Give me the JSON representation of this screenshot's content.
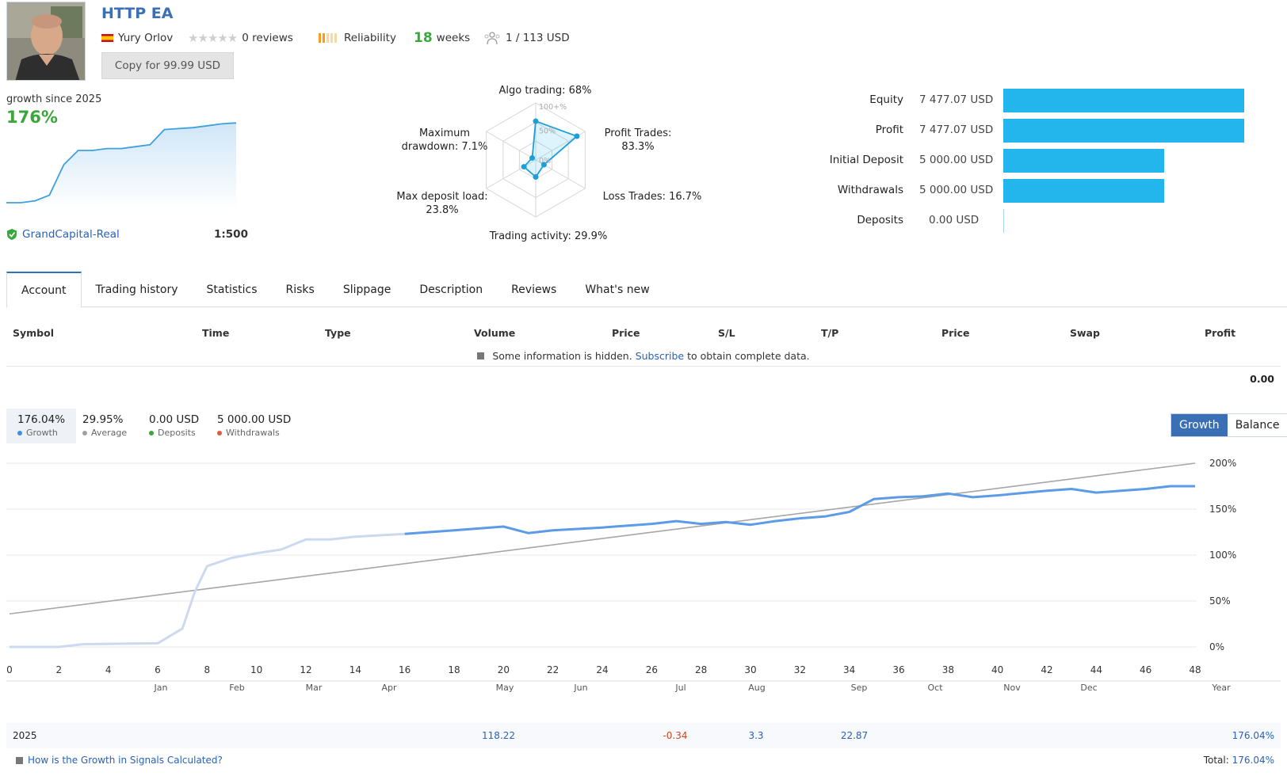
{
  "header": {
    "title": "HTTP EA",
    "author": "Yury Orlov",
    "reviews": "0 reviews",
    "reliability": "Reliability",
    "weeks_num": "18",
    "weeks_label": "weeks",
    "subscribers": "1 / 113 USD",
    "copy_button": "Copy for 99.99 USD"
  },
  "summary": {
    "growth_since": "growth since 2025",
    "growth_pct": "176%",
    "broker": "GrandCapital-Real",
    "leverage": "1:500"
  },
  "radar": {
    "algo": "Algo trading: 68%",
    "profit_l1": "Profit Trades:",
    "profit_l2": "83.3%",
    "loss": "Loss Trades: 16.7%",
    "activity": "Trading activity: 29.9%",
    "load_l1": "Max deposit load:",
    "load_l2": "23.8%",
    "dd_l1": "Maximum",
    "dd_l2": "drawdown: 7.1%",
    "scale_100": "100+%",
    "scale_50": "50%",
    "scale_0": "0%",
    "values": {
      "algo": 68,
      "profit": 83.3,
      "loss": 16.7,
      "activity": 29.9,
      "load": 23.8,
      "drawdown": 7.1
    }
  },
  "equity": [
    {
      "label": "Equity",
      "value": "7 477.07 USD",
      "amount": 7477.07
    },
    {
      "label": "Profit",
      "value": "7 477.07 USD",
      "amount": 7477.07
    },
    {
      "label": "Initial Deposit",
      "value": "5 000.00 USD",
      "amount": 5000
    },
    {
      "label": "Withdrawals",
      "value": "5 000.00 USD",
      "amount": 5000
    },
    {
      "label": "Deposits",
      "value": "0.00 USD",
      "amount": 0
    }
  ],
  "tabs": [
    "Account",
    "Trading history",
    "Statistics",
    "Risks",
    "Slippage",
    "Description",
    "Reviews",
    "What's new"
  ],
  "table": {
    "headers": [
      "Symbol",
      "Time",
      "Type",
      "Volume",
      "Price",
      "S/L",
      "T/P",
      "Price",
      "Swap",
      "Profit"
    ],
    "note_before": "Some information is hidden.",
    "note_link": "Subscribe",
    "note_after": "to obtain complete data.",
    "total": "0.00"
  },
  "stats": [
    {
      "value": "176.04%",
      "label": "Growth",
      "color": "#3e8fe0"
    },
    {
      "value": "29.95%",
      "label": "Average",
      "color": "#a0a0a0"
    },
    {
      "value": "0.00 USD",
      "label": "Deposits",
      "color": "#3aa73a"
    },
    {
      "value": "5 000.00 USD",
      "label": "Withdrawals",
      "color": "#e05b3e"
    }
  ],
  "toggle": {
    "growth": "Growth",
    "balance": "Balance"
  },
  "chart_data": {
    "type": "line",
    "x_ticks": [
      "0",
      "2",
      "4",
      "6",
      "8",
      "10",
      "12",
      "14",
      "16",
      "18",
      "20",
      "22",
      "24",
      "26",
      "28",
      "30",
      "32",
      "34",
      "36",
      "38",
      "40",
      "42",
      "44",
      "46",
      "48"
    ],
    "y_ticks": [
      "0%",
      "50%",
      "100%",
      "150%",
      "200%"
    ],
    "ylim": [
      0,
      200
    ],
    "xlim": [
      0,
      48
    ],
    "months": [
      "Jan",
      "Feb",
      "Mar",
      "Apr",
      "May",
      "Jun",
      "Jul",
      "Aug",
      "Sep",
      "Oct",
      "Nov",
      "Dec"
    ],
    "year_label": "Year",
    "series": [
      {
        "values": [
          [
            0,
            0
          ],
          [
            2,
            0
          ],
          [
            3,
            3
          ],
          [
            6,
            4
          ],
          [
            7,
            20
          ],
          [
            7.5,
            60
          ],
          [
            8,
            88
          ],
          [
            9,
            97
          ],
          [
            10,
            102
          ],
          [
            11,
            106
          ],
          [
            12,
            117
          ],
          [
            13,
            117
          ],
          [
            14,
            120
          ],
          [
            16,
            123
          ],
          [
            18,
            127
          ],
          [
            20,
            131
          ],
          [
            21,
            124
          ],
          [
            22,
            127
          ],
          [
            24,
            130
          ],
          [
            26,
            134
          ],
          [
            27,
            137
          ],
          [
            28,
            134
          ],
          [
            29,
            136
          ],
          [
            30,
            133
          ],
          [
            31,
            137
          ],
          [
            32,
            140
          ],
          [
            33,
            142
          ],
          [
            34,
            147
          ],
          [
            35,
            161
          ],
          [
            36,
            163
          ],
          [
            37,
            164
          ],
          [
            38,
            167
          ],
          [
            39,
            163
          ],
          [
            40,
            165
          ],
          [
            42,
            170
          ],
          [
            43,
            172
          ],
          [
            44,
            168
          ],
          [
            45,
            170
          ],
          [
            46,
            172
          ],
          [
            47,
            175
          ],
          [
            48,
            175
          ]
        ],
        "faded_until": 16
      },
      {
        "values": [
          [
            0,
            36
          ],
          [
            48,
            200
          ]
        ]
      }
    ],
    "year_row": {
      "year": "2025",
      "cells": [
        {
          "month": "May",
          "value": "118.22"
        },
        {
          "month": "Jul",
          "value": "-0.34"
        },
        {
          "month": "Aug",
          "value": "3.3"
        },
        {
          "month": "Sep",
          "value": "22.87"
        }
      ],
      "year_total": "176.04%"
    }
  },
  "mini_chart": {
    "values": [
      0,
      0,
      2,
      8,
      40,
      55,
      55,
      57,
      57,
      59,
      61,
      77,
      78,
      79,
      81,
      83,
      84
    ]
  },
  "footer": {
    "help_link": "How is the Growth in Signals Calculated?",
    "total_label": "Total:",
    "total_value": "176.04%"
  }
}
